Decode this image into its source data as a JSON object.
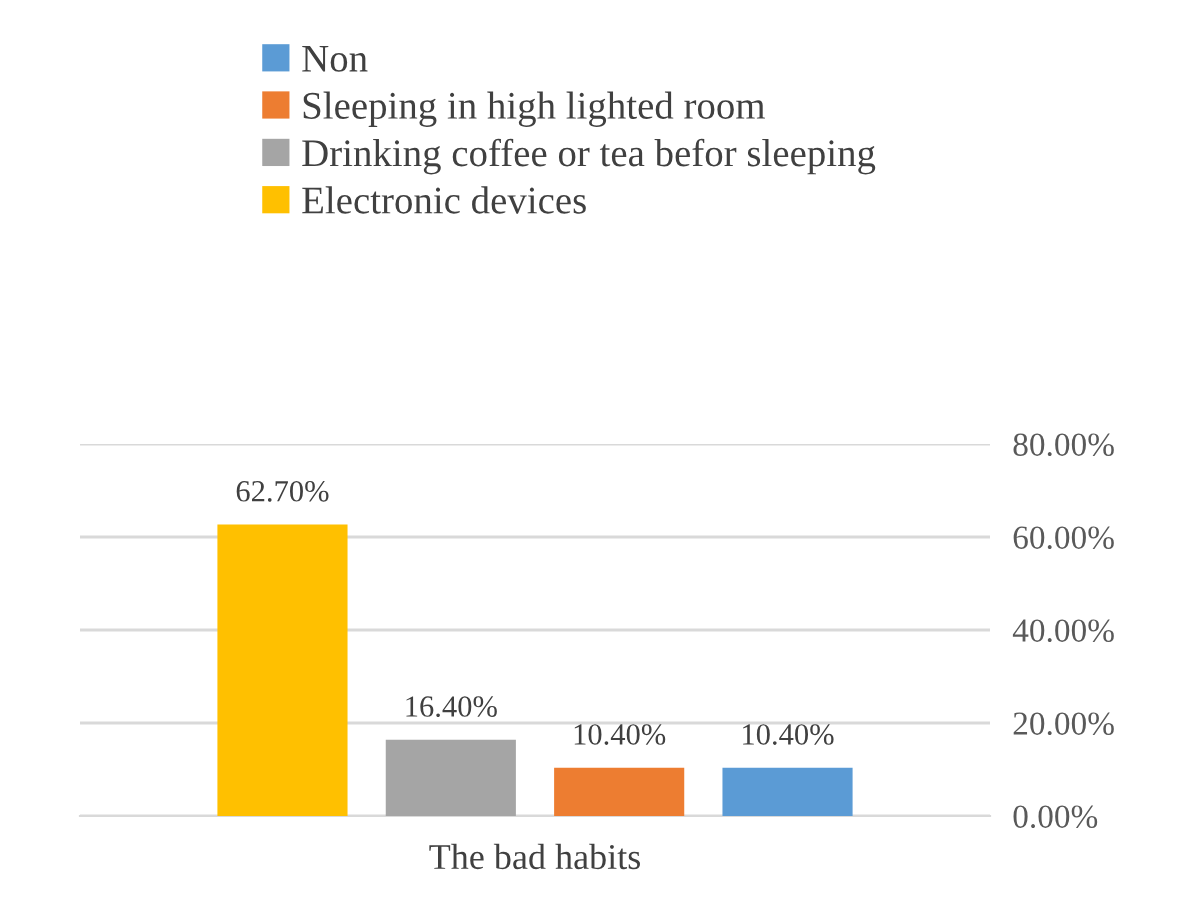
{
  "chart_data": {
    "type": "bar",
    "categories": [
      "The bad habits"
    ],
    "series": [
      {
        "name": "Non",
        "color": "#5b9bd5",
        "values": [
          10.4
        ],
        "value_labels": [
          "10.40%"
        ]
      },
      {
        "name": "Sleeping in high lighted room",
        "color": "#ed7d31",
        "values": [
          10.4
        ],
        "value_labels": [
          "10.40%"
        ]
      },
      {
        "name": "Drinking coffee or tea befor sleeping",
        "color": "#a5a5a5",
        "values": [
          16.4
        ],
        "value_labels": [
          "16.40%"
        ]
      },
      {
        "name": "Electronic devices",
        "color": "#ffc000",
        "values": [
          62.7
        ],
        "value_labels": [
          "62.70%"
        ]
      }
    ],
    "ylim": [
      0,
      80
    ],
    "yticks": [
      {
        "value": 0,
        "label": "0.00%"
      },
      {
        "value": 20,
        "label": "20.00%"
      },
      {
        "value": 40,
        "label": "40.00%"
      },
      {
        "value": 60,
        "label": "60.00%"
      },
      {
        "value": 80,
        "label": "80.00%"
      }
    ],
    "grid": "y",
    "legend": "top"
  }
}
